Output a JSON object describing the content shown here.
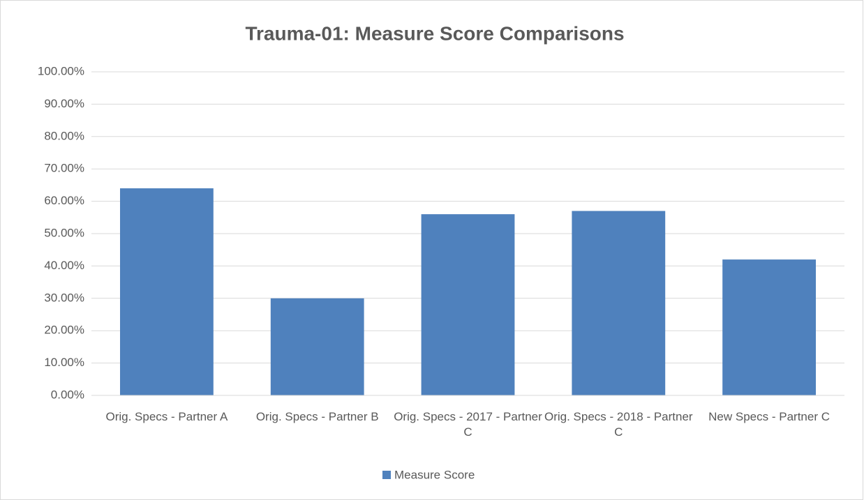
{
  "chart_data": {
    "type": "bar",
    "title": "Trauma-01: Measure Score Comparisons",
    "categories": [
      "Orig. Specs - Partner A",
      "Orig. Specs - Partner B",
      "Orig. Specs - 2017 - Partner C",
      "Orig. Specs - 2018 - Partner C",
      "New Specs - Partner C"
    ],
    "series": [
      {
        "name": "Measure Score",
        "color": "#4f81bd",
        "values": [
          64,
          30,
          56,
          57,
          42
        ]
      }
    ],
    "ylim": [
      0,
      100
    ],
    "yticks": [
      {
        "value": 0,
        "label": "0.00%"
      },
      {
        "value": 10,
        "label": "10.00%"
      },
      {
        "value": 20,
        "label": "20.00%"
      },
      {
        "value": 30,
        "label": "30.00%"
      },
      {
        "value": 40,
        "label": "40.00%"
      },
      {
        "value": 50,
        "label": "50.00%"
      },
      {
        "value": 60,
        "label": "60.00%"
      },
      {
        "value": 70,
        "label": "70.00%"
      },
      {
        "value": 80,
        "label": "80.00%"
      },
      {
        "value": 90,
        "label": "90.00%"
      },
      {
        "value": 100,
        "label": "100.00%"
      }
    ],
    "grid": true,
    "legend": "bottom"
  }
}
